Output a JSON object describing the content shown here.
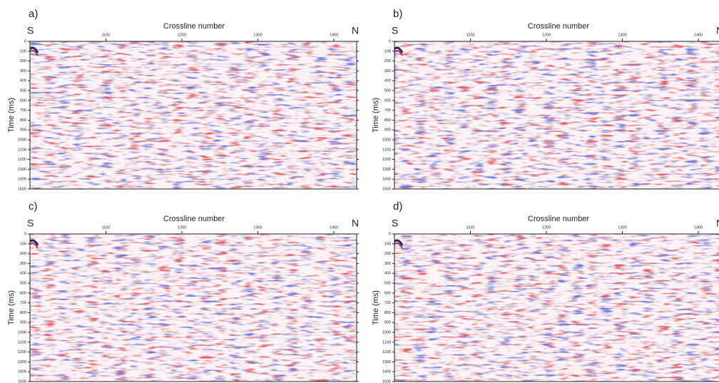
{
  "chart_data": [
    {
      "type": "seismic",
      "panel_label": "a)",
      "title": "Crossline number",
      "ylabel": "Time (ms)",
      "left_label": "S",
      "right_label": "N",
      "xlim": [
        1000,
        1430
      ],
      "xticks": [
        1100,
        1200,
        1300,
        1400
      ],
      "ylim": [
        0,
        1500
      ],
      "yticks": [
        0,
        100,
        200,
        300,
        400,
        500,
        600,
        700,
        800,
        900,
        1000,
        1100,
        1200,
        1300,
        1400,
        1500
      ]
    },
    {
      "type": "seismic",
      "panel_label": "b)",
      "title": "Crossline number",
      "ylabel": "Time (ms)",
      "left_label": "S",
      "right_label": "N",
      "xlim": [
        1000,
        1430
      ],
      "xticks": [
        1100,
        1200,
        1300,
        1400
      ],
      "ylim": [
        0,
        1500
      ],
      "yticks": [
        0,
        100,
        200,
        300,
        400,
        500,
        600,
        700,
        800,
        900,
        1000,
        1100,
        1200,
        1300,
        1400,
        1500
      ]
    },
    {
      "type": "seismic",
      "panel_label": "c)",
      "title": "Crossline number",
      "ylabel": "Time (ms)",
      "left_label": "S",
      "right_label": "N",
      "xlim": [
        1000,
        1430
      ],
      "xticks": [
        1100,
        1200,
        1300,
        1400
      ],
      "ylim": [
        0,
        1500
      ],
      "yticks": [
        0,
        100,
        200,
        300,
        400,
        500,
        600,
        700,
        800,
        900,
        1000,
        1100,
        1200,
        1300,
        1400,
        1500
      ]
    },
    {
      "type": "seismic",
      "panel_label": "d)",
      "title": "Crossline number",
      "ylabel": "Time (ms)",
      "left_label": "S",
      "right_label": "N",
      "xlim": [
        1000,
        1430
      ],
      "xticks": [
        1100,
        1200,
        1300,
        1400
      ],
      "ylim": [
        0,
        1500
      ],
      "yticks": [
        0,
        100,
        200,
        300,
        400,
        500,
        600,
        700,
        800,
        900,
        1000,
        1100,
        1200,
        1300,
        1400,
        1500
      ]
    }
  ]
}
